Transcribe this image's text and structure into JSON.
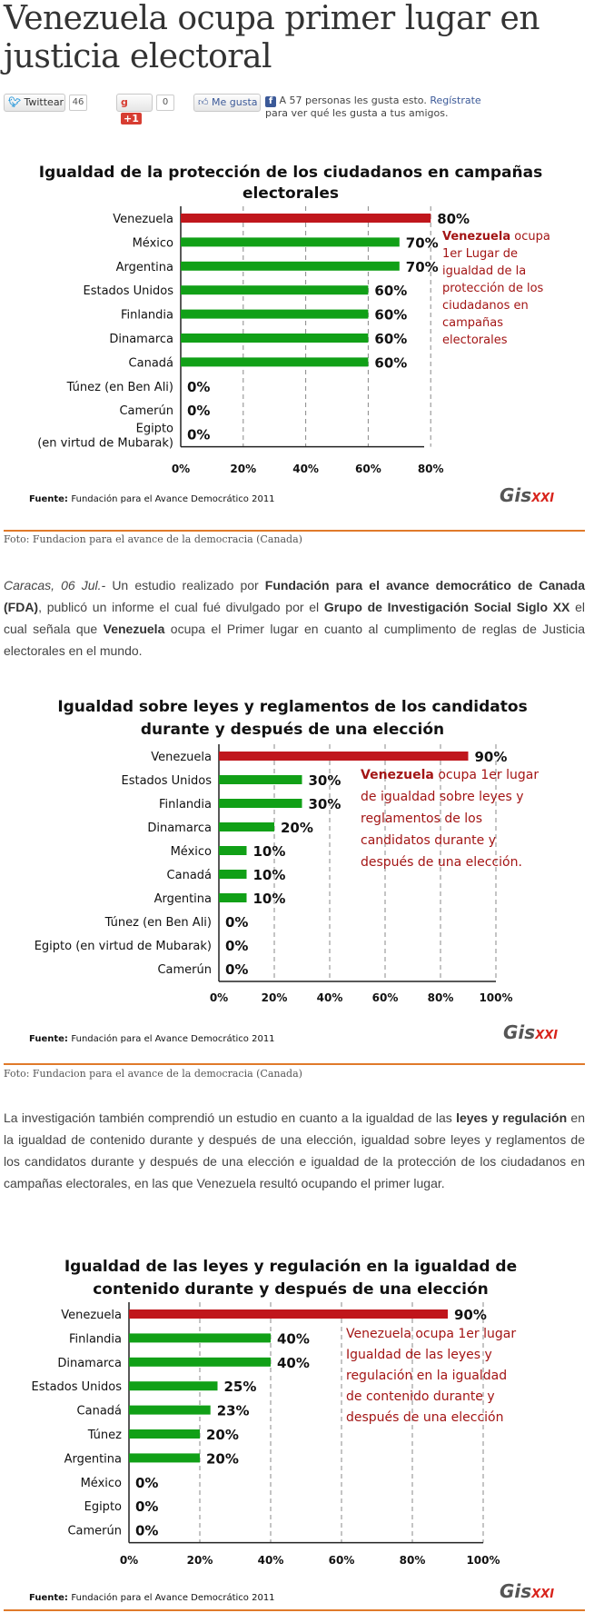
{
  "article": {
    "title": "Venezuela ocupa primer lugar en justicia electoral"
  },
  "social": {
    "twitter_label": "Twittear",
    "twitter_count": "46",
    "gplus_label": "+1",
    "gplus_count": "0",
    "fb_like_label": "Me gusta",
    "fb_text_prefix": "A 57 personas les gusta esto.",
    "fb_register_link": "Regístrate",
    "fb_text_suffix": "para ver qué les gusta a tus amigos."
  },
  "colors": {
    "venezuela_bar": "#c0161c",
    "other_bar": "#11a017",
    "annotation_text": "#a31515",
    "rule": "#e07a2a"
  },
  "chart_data": [
    {
      "type": "bar",
      "orientation": "horizontal",
      "title_lines": [
        "Igualdad de la protección de los ciudadanos en campañas",
        "electorales"
      ],
      "categories": [
        [
          "Venezuela"
        ],
        [
          "México"
        ],
        [
          "Argentina"
        ],
        [
          "Estados Unidos"
        ],
        [
          "Finlandia"
        ],
        [
          "Dinamarca"
        ],
        [
          "Canadá"
        ],
        [
          "Túnez (en Ben Ali)"
        ],
        [
          "Camerún"
        ],
        [
          "Egipto",
          "(en virtud de Mubarak)"
        ]
      ],
      "values": [
        80,
        70,
        70,
        60,
        60,
        60,
        60,
        0,
        0,
        0
      ],
      "value_labels": [
        "80%",
        "70%",
        "70%",
        "60%",
        "60%",
        "60%",
        "60%",
        "0%",
        "0%",
        "0%"
      ],
      "xlim": [
        0,
        80
      ],
      "xticks": [
        0,
        20,
        40,
        60,
        80
      ],
      "xtick_labels": [
        "0%",
        "20%",
        "40%",
        "60%",
        "80%"
      ],
      "annotation": {
        "bold": "Venezuela",
        "rest": " ocupa",
        "lines": [
          "1er Lugar de",
          "igualdad de la",
          "protección de los",
          "ciudadanos en",
          "campañas",
          "electorales"
        ]
      },
      "source_bold": "Fuente:",
      "source": "Fundación para el Avance Democrático 2011",
      "logo": "GisXXI",
      "caption": "Foto: Fundacion para el avance de la democracia (Canada)"
    },
    {
      "type": "bar",
      "orientation": "horizontal",
      "title_lines": [
        "Igualdad sobre leyes y reglamentos de los candidatos",
        "durante y después de una elección"
      ],
      "categories": [
        [
          "Venezuela"
        ],
        [
          "Estados Unidos"
        ],
        [
          "Finlandia"
        ],
        [
          "Dinamarca"
        ],
        [
          "México"
        ],
        [
          "Canadá"
        ],
        [
          "Argentina"
        ],
        [
          "Túnez (en Ben Ali)"
        ],
        [
          "Egipto (en virtud de Mubarak)"
        ],
        [
          "Camerún"
        ]
      ],
      "values": [
        90,
        30,
        30,
        20,
        10,
        10,
        10,
        0,
        0,
        0
      ],
      "value_labels": [
        "90%",
        "30%",
        "30%",
        "20%",
        "10%",
        "10%",
        "10%",
        "0%",
        "0%",
        "0%"
      ],
      "xlim": [
        0,
        100
      ],
      "xticks": [
        0,
        20,
        40,
        60,
        80,
        100
      ],
      "xtick_labels": [
        "0%",
        "20%",
        "40%",
        "60%",
        "80%",
        "100%"
      ],
      "annotation": {
        "bold": "Venezuela",
        "rest": " ocupa 1er lugar",
        "lines": [
          "de igualdad sobre leyes y",
          "reglamentos de los",
          "candidatos durante y",
          "después de una elección."
        ]
      },
      "source_bold": "Fuente:",
      "source": "Fundación para el Avance Democrático 2011",
      "logo": "GisXXI",
      "caption": "Foto: Fundacion para el avance de la democracia (Canada)"
    },
    {
      "type": "bar",
      "orientation": "horizontal",
      "title_lines": [
        "Igualdad de las leyes y regulación en la igualdad de",
        "contenido durante y después de una elección"
      ],
      "categories": [
        [
          "Venezuela"
        ],
        [
          "Finlandia"
        ],
        [
          "Dinamarca"
        ],
        [
          "Estados Unidos"
        ],
        [
          "Canadá"
        ],
        [
          "Túnez"
        ],
        [
          "Argentina"
        ],
        [
          "México"
        ],
        [
          "Egipto"
        ],
        [
          "Camerún"
        ]
      ],
      "values": [
        90,
        40,
        40,
        25,
        23,
        20,
        20,
        0,
        0,
        0
      ],
      "value_labels": [
        "90%",
        "40%",
        "40%",
        "25%",
        "23%",
        "20%",
        "20%",
        "0%",
        "0%",
        "0%"
      ],
      "xlim": [
        0,
        100
      ],
      "xticks": [
        0,
        20,
        40,
        60,
        80,
        100
      ],
      "xtick_labels": [
        "0%",
        "20%",
        "40%",
        "60%",
        "80%",
        "100%"
      ],
      "annotation": {
        "bold": "",
        "rest": "Venezuela ocupa 1er lugar",
        "lines": [
          "Igualdad de las leyes y",
          "regulación en la igualdad",
          "de contenido durante y",
          "después de una elección"
        ]
      },
      "source_bold": "Fuente:",
      "source": "Fundación para el Avance Democrático 2011",
      "logo": "GisXXI"
    }
  ],
  "paragraphs": {
    "p1": {
      "dateline": "Caracas, 06 Jul.-",
      "t1": " Un estudio realizado por ",
      "b1": "Fundación para el avance democrático de Canada (FDA)",
      "t2": ", publicó un informe el cual fué divulgado por el ",
      "b2": "Grupo de Investigación Social Siglo XX",
      "t3": " el cual señala que ",
      "b3": "Venezuela",
      "t4": " ocupa el Primer lugar en cuanto al cumplimento de reglas de Justicia electorales en el mundo."
    },
    "p2": {
      "t1": "La investigación también comprendió un estudio en cuanto a la igualdad de las ",
      "b1": "leyes y regulación",
      "t2": " en la igualdad de contenido durante y después de una elección, igualdad sobre leyes y reglamentos de los candidatos durante y después de una elección e igualdad de la protección de los ciudadanos en campañas electorales, en las que Venezuela resultó ocupando el primer lugar."
    }
  }
}
